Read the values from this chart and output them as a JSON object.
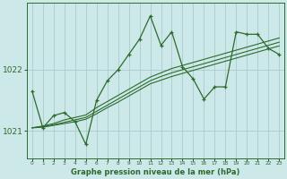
{
  "title": "Graphe pression niveau de la mer (hPa)",
  "bg_color": "#cce8e8",
  "grid_color": "#aacccc",
  "line_color": "#2d6b2d",
  "x_ticks": [
    0,
    1,
    2,
    3,
    4,
    5,
    6,
    7,
    8,
    9,
    10,
    11,
    12,
    13,
    14,
    15,
    16,
    17,
    18,
    19,
    20,
    21,
    22,
    23
  ],
  "ylim": [
    1020.55,
    1023.1
  ],
  "yticks": [
    1021,
    1022
  ],
  "series_main": [
    1021.65,
    1021.05,
    1021.25,
    1021.3,
    1021.15,
    1020.78,
    1021.5,
    1021.82,
    1022.0,
    1022.25,
    1022.5,
    1022.88,
    1022.4,
    1022.62,
    1022.05,
    1021.85,
    1021.52,
    1021.72,
    1021.72,
    1022.62,
    1022.58,
    1022.58,
    1022.35,
    1022.25
  ],
  "series_trend1": [
    1021.05,
    1021.08,
    1021.12,
    1021.18,
    1021.22,
    1021.26,
    1021.38,
    1021.48,
    1021.58,
    1021.68,
    1021.78,
    1021.88,
    1021.95,
    1022.02,
    1022.07,
    1022.12,
    1022.17,
    1022.22,
    1022.27,
    1022.32,
    1022.37,
    1022.42,
    1022.47,
    1022.52
  ],
  "series_trend2": [
    1021.05,
    1021.07,
    1021.1,
    1021.14,
    1021.18,
    1021.22,
    1021.32,
    1021.42,
    1021.52,
    1021.62,
    1021.72,
    1021.82,
    1021.89,
    1021.95,
    1022.0,
    1022.05,
    1022.1,
    1022.15,
    1022.2,
    1022.25,
    1022.3,
    1022.35,
    1022.4,
    1022.45
  ],
  "series_trend3": [
    1021.05,
    1021.06,
    1021.09,
    1021.12,
    1021.15,
    1021.19,
    1021.28,
    1021.38,
    1021.47,
    1021.57,
    1021.67,
    1021.77,
    1021.83,
    1021.89,
    1021.94,
    1021.99,
    1022.04,
    1022.09,
    1022.14,
    1022.19,
    1022.24,
    1022.29,
    1022.34,
    1022.39
  ]
}
